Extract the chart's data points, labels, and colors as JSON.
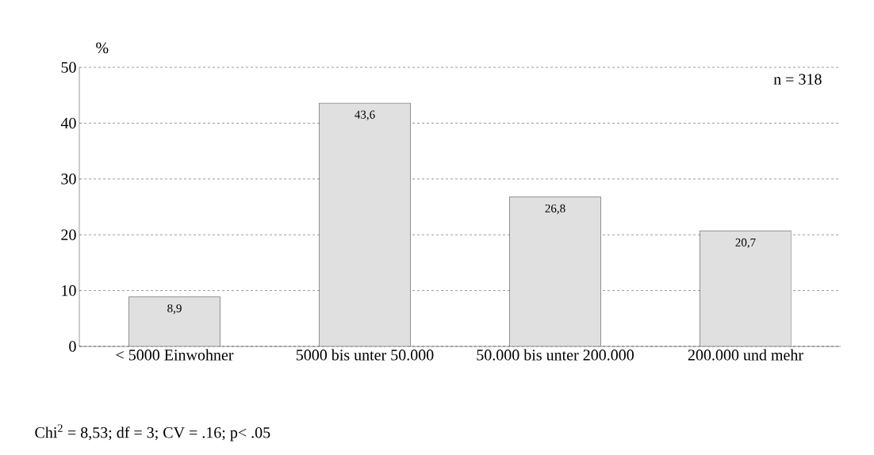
{
  "chart_data": {
    "type": "bar",
    "ylabel": "%",
    "categories": [
      "< 5000 Einwohner",
      "5000 bis unter 50.000",
      "50.000 bis unter 200.000",
      "200.000 und mehr"
    ],
    "values": [
      8.9,
      43.6,
      26.8,
      20.7
    ],
    "value_labels": [
      "8,9",
      "43,6",
      "26,8",
      "20,7"
    ],
    "color": "#e0e0e0",
    "ylim": [
      0,
      50
    ],
    "yticks": [
      0,
      10,
      20,
      30,
      40,
      50
    ],
    "grid": "y",
    "annotations": [
      {
        "text": "n = 318"
      },
      {
        "text": "Chi$^{2}$ = 8,53; df = 3; CV = .16; p< .05"
      }
    ]
  }
}
